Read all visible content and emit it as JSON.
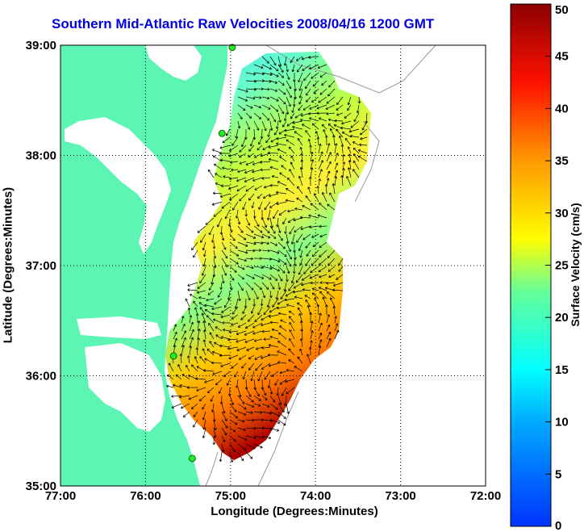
{
  "title": "Southern Mid-Atlantic Raw Velocities 2008/04/16 1200 GMT",
  "x_axis": {
    "label": "Longitude (Degrees:Minutes)",
    "ticks": [
      {
        "label": "77:00",
        "value": -77
      },
      {
        "label": "76:00",
        "value": -76
      },
      {
        "label": "75:00",
        "value": -75
      },
      {
        "label": "74:00",
        "value": -74
      },
      {
        "label": "73:00",
        "value": -73
      },
      {
        "label": "72:00",
        "value": -72
      }
    ]
  },
  "y_axis": {
    "label": "Latitude (Degrees:Minutes)",
    "ticks": [
      {
        "label": "39:00",
        "value": 39
      },
      {
        "label": "38:00",
        "value": 38
      },
      {
        "label": "37:00",
        "value": 37
      },
      {
        "label": "36:00",
        "value": 36
      },
      {
        "label": "35:00",
        "value": 35
      }
    ]
  },
  "colorbar": {
    "label": "Surface Velocity (cm/s)",
    "range": [
      0,
      50
    ],
    "ticks": [
      "0",
      "5",
      "10",
      "15",
      "20",
      "25",
      "30",
      "35",
      "40",
      "45",
      "50"
    ],
    "colormap": "jet"
  },
  "colors": {
    "land": "#5cf5b4",
    "title": "#0000e0",
    "grid": "#000000",
    "stations": "#22ee22"
  },
  "stations": [
    {
      "lon": -74.98,
      "lat": 38.98
    },
    {
      "lon": -75.1,
      "lat": 38.2
    },
    {
      "lon": -75.67,
      "lat": 36.18
    },
    {
      "lon": -75.45,
      "lat": 35.25
    }
  ]
}
